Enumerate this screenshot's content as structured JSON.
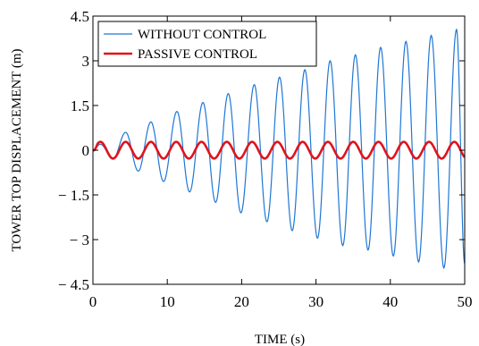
{
  "chart_data": {
    "type": "line",
    "xlabel": "TIME (s)",
    "ylabel": "TOWER TOP DISPLACEMENT (m)",
    "xlim": [
      0,
      50
    ],
    "ylim": [
      -4.5,
      4.5
    ],
    "x_ticks": [
      0,
      10,
      20,
      30,
      40,
      50
    ],
    "y_ticks": [
      -4.5,
      -3,
      -1.5,
      0,
      1.5,
      3,
      4.5
    ],
    "x_tick_labels": [
      "0",
      "10",
      "20",
      "30",
      "40",
      "50"
    ],
    "y_tick_labels": [
      "− 4.5",
      "− 3",
      "− 1.5",
      "0",
      "1.5",
      "3",
      "4.5"
    ],
    "grid": false,
    "legend_position": "top-left",
    "series": [
      {
        "name": "WITHOUT CONTROL",
        "color": "#1f77d4",
        "line_width": "thin",
        "period_s": 3.4,
        "peaks": [
          {
            "x": 1.0,
            "y": 0.2
          },
          {
            "x": 2.7,
            "y": -0.3
          },
          {
            "x": 4.4,
            "y": 0.6
          },
          {
            "x": 6.1,
            "y": -0.7
          },
          {
            "x": 7.8,
            "y": 0.95
          },
          {
            "x": 9.5,
            "y": -1.05
          },
          {
            "x": 11.3,
            "y": 1.3
          },
          {
            "x": 13.0,
            "y": -1.4
          },
          {
            "x": 14.8,
            "y": 1.6
          },
          {
            "x": 16.5,
            "y": -1.75
          },
          {
            "x": 18.2,
            "y": 1.9
          },
          {
            "x": 19.9,
            "y": -2.1
          },
          {
            "x": 21.7,
            "y": 2.2
          },
          {
            "x": 23.4,
            "y": -2.4
          },
          {
            "x": 25.1,
            "y": 2.45
          },
          {
            "x": 26.8,
            "y": -2.7
          },
          {
            "x": 28.5,
            "y": 2.7
          },
          {
            "x": 30.2,
            "y": -2.95
          },
          {
            "x": 31.9,
            "y": 3.0
          },
          {
            "x": 33.6,
            "y": -3.2
          },
          {
            "x": 35.3,
            "y": 3.2
          },
          {
            "x": 37.0,
            "y": -3.35
          },
          {
            "x": 38.7,
            "y": 3.45
          },
          {
            "x": 40.4,
            "y": -3.55
          },
          {
            "x": 42.1,
            "y": 3.65
          },
          {
            "x": 43.8,
            "y": -3.75
          },
          {
            "x": 45.5,
            "y": 3.85
          },
          {
            "x": 47.2,
            "y": -3.95
          },
          {
            "x": 48.9,
            "y": 4.05
          },
          {
            "x": 50.0,
            "y": -3.8
          }
        ]
      },
      {
        "name": "PASSIVE CONTROL",
        "color": "#e0141c",
        "line_width": "thick",
        "period_s": 3.4,
        "amplitude": 0.28,
        "first_peak_x": 1.0
      }
    ]
  }
}
